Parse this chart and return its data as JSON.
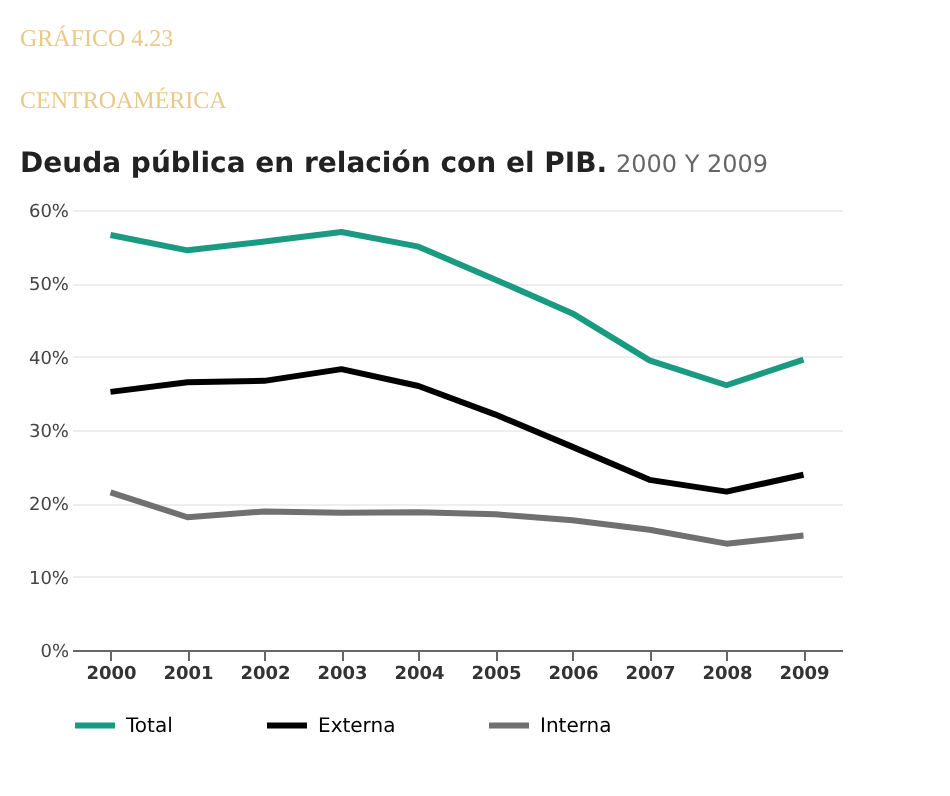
{
  "chart_data": {
    "type": "line",
    "title": "Deuda pública en relación con el PIB.",
    "subtitle": "2000 Y 2009",
    "annotations": [
      "GRÁFICO 4.23",
      "CENTROAMÉRICA"
    ],
    "categories": [
      "2000",
      "2001",
      "2002",
      "2003",
      "2004",
      "2005",
      "2006",
      "2007",
      "2008",
      "2009"
    ],
    "series": [
      {
        "name": "Total",
        "color": "#1a9a80",
        "values": [
          56.6,
          54.5,
          55.7,
          57,
          55,
          50.5,
          45.9,
          39.5,
          36.1,
          39.6
        ]
      },
      {
        "name": "Externa",
        "color": "#000000",
        "values": [
          35.2,
          36.5,
          36.7,
          38.3,
          36,
          32.1,
          27.7,
          23.2,
          21.6,
          23.9
        ]
      },
      {
        "name": "Interna",
        "color": "#707070",
        "values": [
          21.5,
          18.1,
          18.9,
          18.7,
          18.8,
          18.5,
          17.7,
          16.4,
          14.5,
          15.6
        ]
      }
    ],
    "ylim": [
      0,
      60
    ],
    "yticks": [
      {
        "value": 0,
        "label": "0%"
      },
      {
        "value": 10,
        "label": "10%"
      },
      {
        "value": 20,
        "label": "20%"
      },
      {
        "value": 30,
        "label": "30%"
      },
      {
        "value": 40,
        "label": "40%"
      },
      {
        "value": 50,
        "label": "50%"
      },
      {
        "value": 60,
        "label": "60%"
      }
    ],
    "grid": "y",
    "legend": "bottom",
    "marker": "none",
    "line_style": "solid"
  }
}
